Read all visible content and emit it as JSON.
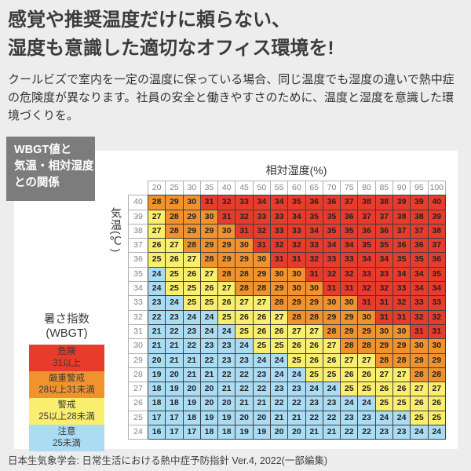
{
  "title": {
    "line1": "感覚や推奨温度だけに頼らない、",
    "line2": "湿度も意識した適切なオフィス環境を!"
  },
  "intro": "クールビズで室内を一定の温度に保っている場合、同じ温度でも湿度の違いで熱中症の危険度が異なります。社員の安全と働きやすさのために、温度と湿度を意識した環境づくりを。",
  "tag_box": {
    "lines": [
      "WBGT値と",
      "気温・相対湿度",
      "との関係"
    ],
    "bg_color": "#7c7c7c"
  },
  "legend": {
    "title_line1": "暑さ指数",
    "title_line2": "(WBGT)"
  },
  "footer": "日本生気象学会: 日常生活における熱中症予防指針 Ver.4, 2022(一部編集)",
  "chart_data": {
    "type": "heatmap",
    "title": "WBGT値と気温・相対湿度との関係",
    "xlabel": "相対湿度(%)",
    "ylabel": "気温(℃)",
    "x_humidity_percent": [
      20,
      25,
      30,
      35,
      40,
      45,
      50,
      55,
      60,
      65,
      70,
      75,
      80,
      85,
      90,
      95,
      100
    ],
    "y_temperature_c": [
      40,
      39,
      38,
      37,
      36,
      35,
      34,
      33,
      32,
      31,
      30,
      29,
      28,
      27,
      26,
      25,
      24
    ],
    "values_wbgt": [
      [
        28,
        29,
        30,
        31,
        32,
        33,
        34,
        34,
        35,
        36,
        36,
        37,
        38,
        38,
        39,
        39,
        40
      ],
      [
        27,
        28,
        29,
        30,
        31,
        32,
        33,
        33,
        34,
        35,
        35,
        36,
        37,
        37,
        38,
        38,
        39
      ],
      [
        27,
        28,
        29,
        29,
        30,
        31,
        32,
        33,
        33,
        34,
        35,
        35,
        36,
        36,
        37,
        37,
        38
      ],
      [
        26,
        27,
        28,
        29,
        29,
        30,
        31,
        32,
        32,
        33,
        34,
        34,
        35,
        35,
        36,
        36,
        37
      ],
      [
        25,
        26,
        27,
        28,
        29,
        29,
        30,
        31,
        31,
        32,
        33,
        33,
        34,
        34,
        35,
        35,
        36
      ],
      [
        24,
        25,
        26,
        27,
        28,
        28,
        29,
        30,
        30,
        31,
        32,
        32,
        33,
        33,
        34,
        34,
        35
      ],
      [
        24,
        25,
        25,
        26,
        27,
        28,
        28,
        29,
        30,
        30,
        31,
        31,
        32,
        32,
        33,
        34,
        34
      ],
      [
        23,
        24,
        25,
        25,
        26,
        27,
        27,
        28,
        29,
        29,
        30,
        30,
        31,
        31,
        32,
        33,
        33
      ],
      [
        22,
        23,
        24,
        24,
        25,
        26,
        26,
        27,
        28,
        28,
        29,
        29,
        30,
        31,
        31,
        32,
        32
      ],
      [
        21,
        22,
        23,
        24,
        24,
        25,
        26,
        26,
        27,
        27,
        28,
        29,
        29,
        30,
        30,
        31,
        31
      ],
      [
        21,
        21,
        22,
        23,
        23,
        24,
        25,
        25,
        26,
        26,
        27,
        28,
        28,
        29,
        29,
        30,
        30
      ],
      [
        20,
        21,
        21,
        22,
        23,
        23,
        24,
        24,
        25,
        26,
        26,
        27,
        27,
        28,
        28,
        29,
        29
      ],
      [
        19,
        20,
        21,
        21,
        22,
        22,
        23,
        24,
        24,
        25,
        25,
        26,
        26,
        27,
        27,
        28,
        28
      ],
      [
        18,
        19,
        20,
        20,
        21,
        22,
        22,
        23,
        23,
        24,
        24,
        25,
        25,
        26,
        26,
        27,
        27
      ],
      [
        18,
        18,
        19,
        20,
        20,
        21,
        21,
        22,
        22,
        23,
        23,
        24,
        24,
        25,
        25,
        26,
        26
      ],
      [
        17,
        17,
        18,
        19,
        19,
        20,
        20,
        21,
        21,
        22,
        22,
        23,
        23,
        24,
        24,
        25,
        25
      ],
      [
        16,
        17,
        17,
        18,
        18,
        19,
        19,
        20,
        20,
        21,
        21,
        22,
        22,
        23,
        23,
        24,
        24
      ]
    ],
    "color_scale": [
      {
        "label": "危険",
        "range": "31以上",
        "min": 31,
        "color": "#e73b2c"
      },
      {
        "label": "厳重警戒",
        "range": "28以上31未満",
        "min": 28,
        "color": "#f0922e"
      },
      {
        "label": "警戒",
        "range": "25以上28未満",
        "min": 25,
        "color": "#f9ee6e"
      },
      {
        "label": "注意",
        "range": "25未満",
        "min": 0,
        "color": "#aadcf4"
      }
    ],
    "legend_position": "bottom-left",
    "grid": true
  }
}
